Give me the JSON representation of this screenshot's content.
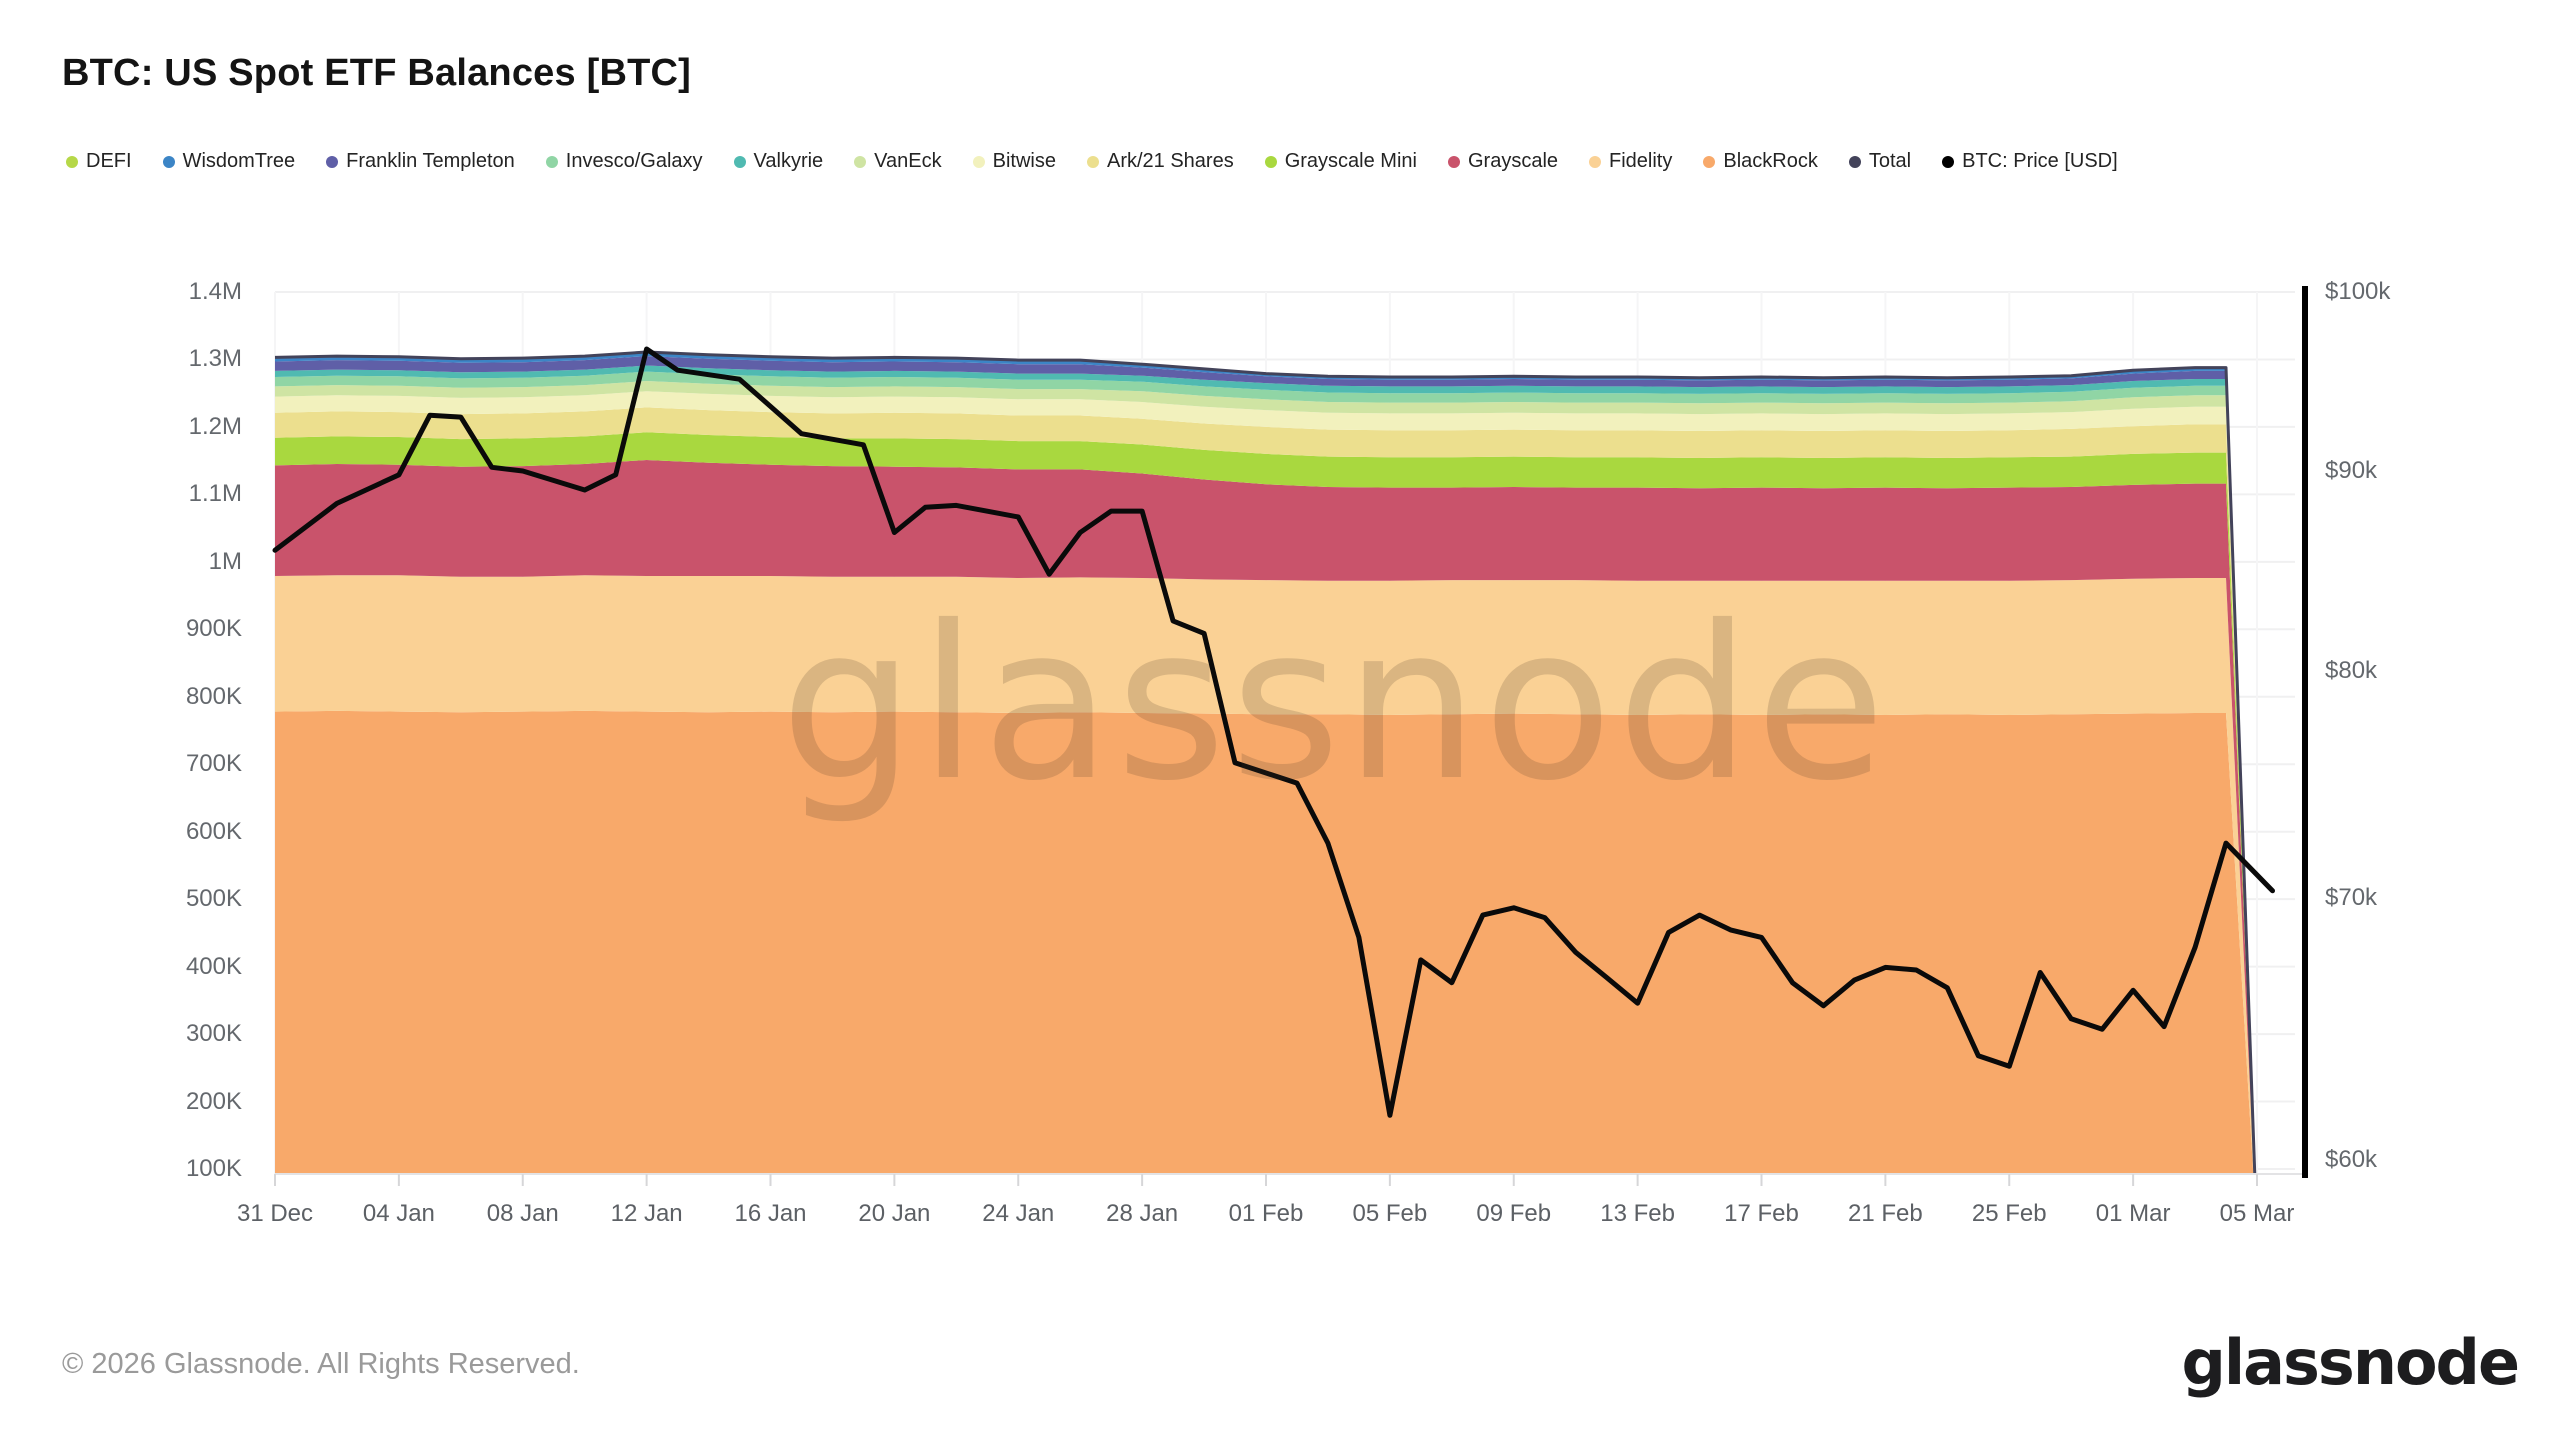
{
  "title": "BTC: US Spot ETF Balances [BTC]",
  "watermark": "glassnode",
  "footer": {
    "copyright": "© 2026 Glassnode. All Rights Reserved.",
    "logo": "glassnode"
  },
  "legend": [
    {
      "label": "DEFI",
      "color": "#b6d848"
    },
    {
      "label": "WisdomTree",
      "color": "#3c85c6"
    },
    {
      "label": "Franklin Templeton",
      "color": "#5f5fa7"
    },
    {
      "label": "Invesco/Galaxy",
      "color": "#90d5a5"
    },
    {
      "label": "Valkyrie",
      "color": "#50bab1"
    },
    {
      "label": "VanEck",
      "color": "#cfe4a3"
    },
    {
      "label": "Bitwise",
      "color": "#f2f1bd"
    },
    {
      "label": "Ark/21 Shares",
      "color": "#ecdf8e"
    },
    {
      "label": "Grayscale Mini",
      "color": "#a9d83f"
    },
    {
      "label": "Grayscale",
      "color": "#c9536b"
    },
    {
      "label": "Fidelity",
      "color": "#fad195"
    },
    {
      "label": "BlackRock",
      "color": "#f8a96a"
    },
    {
      "label": "Total",
      "color": "#43435a"
    },
    {
      "label": "BTC: Price [USD]",
      "color": "#000000"
    }
  ],
  "chart_data": {
    "type": "area",
    "subtype": "stacked-area-with-price-line",
    "x_unit": "days since 31 Dec",
    "left_axis": {
      "label_unit": "BTC",
      "min": 100000,
      "max": 1400000,
      "scale": "linear",
      "ticks": [
        {
          "value": 1400,
          "label": "1.4M"
        },
        {
          "value": 1300,
          "label": "1.3M"
        },
        {
          "value": 1200,
          "label": "1.2M"
        },
        {
          "value": 1100,
          "label": "1.1M"
        },
        {
          "value": 1000,
          "label": "1M"
        },
        {
          "value": 900,
          "label": "900K"
        },
        {
          "value": 800,
          "label": "800K"
        },
        {
          "value": 700,
          "label": "700K"
        },
        {
          "value": 600,
          "label": "600K"
        },
        {
          "value": 500,
          "label": "500K"
        },
        {
          "value": 400,
          "label": "400K"
        },
        {
          "value": 300,
          "label": "300K"
        },
        {
          "value": 200,
          "label": "200K"
        },
        {
          "value": 100,
          "label": "100K"
        }
      ]
    },
    "right_axis": {
      "label_unit": "USD",
      "min": 60,
      "max": 100,
      "scale": "log",
      "ticks": [
        {
          "value": 100,
          "label": "$100k"
        },
        {
          "value": 90,
          "label": "$90k"
        },
        {
          "value": 80,
          "label": "$80k"
        },
        {
          "value": 70,
          "label": "$70k"
        },
        {
          "value": 60,
          "label": "$60k"
        }
      ]
    },
    "x_axis": {
      "ticks": [
        {
          "day": 0,
          "label": "31 Dec"
        },
        {
          "day": 4,
          "label": "04 Jan"
        },
        {
          "day": 8,
          "label": "08 Jan"
        },
        {
          "day": 12,
          "label": "12 Jan"
        },
        {
          "day": 16,
          "label": "16 Jan"
        },
        {
          "day": 20,
          "label": "20 Jan"
        },
        {
          "day": 24,
          "label": "24 Jan"
        },
        {
          "day": 28,
          "label": "28 Jan"
        },
        {
          "day": 32,
          "label": "01 Feb"
        },
        {
          "day": 36,
          "label": "05 Feb"
        },
        {
          "day": 40,
          "label": "09 Feb"
        },
        {
          "day": 44,
          "label": "13 Feb"
        },
        {
          "day": 48,
          "label": "17 Feb"
        },
        {
          "day": 52,
          "label": "21 Feb"
        },
        {
          "day": 56,
          "label": "25 Feb"
        },
        {
          "day": 60,
          "label": "01 Mar"
        },
        {
          "day": 64,
          "label": "05 Mar"
        }
      ]
    },
    "days": [
      0,
      2,
      4,
      6,
      8,
      10,
      12,
      14,
      16,
      18,
      20,
      22,
      24,
      26,
      28,
      30,
      32,
      34,
      36,
      38,
      40,
      42,
      44,
      46,
      48,
      50,
      52,
      54,
      56,
      58,
      60,
      62,
      63,
      64
    ],
    "series": [
      {
        "name": "BlackRock",
        "color": "#f8a96a",
        "values": [
          778,
          779,
          778,
          777,
          778,
          779,
          778,
          777,
          778,
          777,
          778,
          777,
          776,
          777,
          776,
          775,
          774,
          774,
          773,
          774,
          775,
          774,
          773,
          774,
          773,
          774,
          773,
          774,
          773,
          774,
          775,
          776,
          776,
          0
        ]
      },
      {
        "name": "Fidelity",
        "color": "#fad195",
        "values": [
          201,
          201,
          202,
          201,
          200,
          201,
          201,
          202,
          201,
          201,
          200,
          201,
          200,
          200,
          200,
          199,
          199,
          198,
          199,
          199,
          198,
          199,
          199,
          198,
          199,
          198,
          199,
          198,
          199,
          199,
          200,
          200,
          200,
          0
        ]
      },
      {
        "name": "Grayscale",
        "color": "#c9536b",
        "values": [
          164,
          165,
          164,
          163,
          164,
          165,
          172,
          168,
          165,
          164,
          163,
          162,
          161,
          160,
          155,
          148,
          142,
          139,
          138,
          137,
          138,
          137,
          138,
          137,
          138,
          137,
          138,
          137,
          138,
          138,
          139,
          140,
          140,
          0
        ]
      },
      {
        "name": "Grayscale Mini",
        "color": "#a9d83f",
        "values": [
          41,
          41,
          41,
          41,
          41,
          41,
          41,
          41,
          41,
          41,
          42,
          42,
          42,
          42,
          43,
          44,
          45,
          45,
          45,
          45,
          45,
          45,
          45,
          45,
          45,
          45,
          45,
          45,
          45,
          45,
          46,
          46,
          46,
          0
        ]
      },
      {
        "name": "Ark/21 Shares",
        "color": "#ecdf8e",
        "values": [
          37,
          37,
          37,
          37,
          37,
          37,
          37,
          37,
          37,
          37,
          38,
          38,
          38,
          38,
          38,
          39,
          40,
          40,
          40,
          40,
          40,
          40,
          40,
          40,
          40,
          40,
          40,
          40,
          40,
          41,
          41,
          42,
          42,
          0
        ]
      },
      {
        "name": "Bitwise",
        "color": "#f2f1bd",
        "values": [
          24,
          24,
          24,
          24,
          24,
          24,
          24,
          24,
          24,
          24,
          24,
          24,
          24,
          24,
          25,
          25,
          25,
          25,
          25,
          25,
          25,
          25,
          25,
          25,
          25,
          25,
          25,
          25,
          25,
          25,
          26,
          26,
          26,
          0
        ]
      },
      {
        "name": "VanEck",
        "color": "#cfe4a3",
        "values": [
          15,
          15,
          15,
          15,
          15,
          15,
          15,
          15,
          15,
          15,
          15,
          15,
          15,
          15,
          16,
          16,
          16,
          16,
          16,
          16,
          16,
          16,
          16,
          16,
          16,
          16,
          16,
          16,
          16,
          16,
          17,
          17,
          17,
          0
        ]
      },
      {
        "name": "Invesco/Galaxy",
        "color": "#90d5a5",
        "values": [
          14,
          14,
          14,
          14,
          14,
          14,
          14,
          14,
          14,
          14,
          14,
          14,
          14,
          14,
          14,
          14,
          14,
          14,
          14,
          14,
          14,
          14,
          14,
          14,
          14,
          14,
          14,
          14,
          14,
          14,
          14,
          14,
          14,
          0
        ]
      },
      {
        "name": "Valkyrie",
        "color": "#50bab1",
        "values": [
          9,
          9,
          9,
          9,
          9,
          9,
          9,
          9,
          9,
          9,
          9,
          9,
          9,
          9,
          9,
          10,
          10,
          10,
          10,
          10,
          10,
          10,
          10,
          10,
          10,
          10,
          10,
          10,
          10,
          10,
          10,
          10,
          10,
          0
        ]
      },
      {
        "name": "Franklin Templeton",
        "color": "#5f5fa7",
        "values": [
          14,
          14,
          14,
          14,
          14,
          14,
          14,
          14,
          14,
          14,
          14,
          14,
          14,
          14,
          12,
          11,
          10,
          10,
          10,
          10,
          10,
          10,
          10,
          10,
          10,
          10,
          10,
          10,
          10,
          10,
          11,
          12,
          12,
          0
        ]
      },
      {
        "name": "WisdomTree",
        "color": "#3c85c6",
        "values": [
          5,
          5,
          5,
          5,
          5,
          5,
          5,
          5,
          5,
          5,
          5,
          5,
          5,
          5,
          4,
          4,
          3,
          3,
          3,
          3,
          3,
          3,
          3,
          3,
          3,
          3,
          3,
          3,
          3,
          3,
          4,
          4,
          4,
          0
        ]
      },
      {
        "name": "DEFI",
        "color": "#b6d848",
        "values": [
          1,
          1,
          1,
          1,
          1,
          1,
          1,
          1,
          1,
          1,
          1,
          1,
          1,
          1,
          1,
          1,
          1,
          1,
          1,
          1,
          1,
          1,
          1,
          1,
          1,
          1,
          1,
          1,
          1,
          1,
          1,
          1,
          1,
          0
        ]
      }
    ],
    "total_line": {
      "name": "Total",
      "color": "#43435a"
    },
    "price_line": {
      "name": "BTC: Price [USD]",
      "color": "#0a0a0a",
      "unit": "$k",
      "points": [
        [
          0,
          85.9
        ],
        [
          2,
          88.3
        ],
        [
          4,
          89.8
        ],
        [
          5,
          93.0
        ],
        [
          6,
          92.9
        ],
        [
          7,
          90.2
        ],
        [
          8,
          90.0
        ],
        [
          10,
          89.0
        ],
        [
          11,
          89.8
        ],
        [
          12,
          96.7
        ],
        [
          13,
          95.5
        ],
        [
          15,
          95.0
        ],
        [
          17,
          92.0
        ],
        [
          19,
          91.4
        ],
        [
          20,
          86.8
        ],
        [
          21,
          88.1
        ],
        [
          22,
          88.2
        ],
        [
          24,
          87.6
        ],
        [
          25,
          84.7
        ],
        [
          26,
          86.8
        ],
        [
          27,
          87.9
        ],
        [
          28,
          87.9
        ],
        [
          29,
          82.4
        ],
        [
          30,
          81.8
        ],
        [
          31,
          75.8
        ],
        [
          33,
          74.9
        ],
        [
          34,
          72.3
        ],
        [
          35,
          68.4
        ],
        [
          36,
          61.6
        ],
        [
          37,
          67.5
        ],
        [
          38,
          66.6
        ],
        [
          39,
          69.3
        ],
        [
          40,
          69.6
        ],
        [
          41,
          69.2
        ],
        [
          42,
          67.8
        ],
        [
          43,
          66.8
        ],
        [
          44,
          65.8
        ],
        [
          45,
          68.6
        ],
        [
          46,
          69.3
        ],
        [
          47,
          68.7
        ],
        [
          48,
          68.4
        ],
        [
          49,
          66.6
        ],
        [
          50,
          65.7
        ],
        [
          51,
          66.7
        ],
        [
          52,
          67.2
        ],
        [
          53,
          67.1
        ],
        [
          54,
          66.4
        ],
        [
          55,
          63.8
        ],
        [
          56,
          63.4
        ],
        [
          57,
          67.0
        ],
        [
          58,
          65.2
        ],
        [
          59,
          64.8
        ],
        [
          60,
          66.3
        ],
        [
          61,
          64.9
        ],
        [
          62,
          68.0
        ],
        [
          63,
          72.3
        ],
        [
          64.5,
          70.3
        ]
      ]
    }
  }
}
